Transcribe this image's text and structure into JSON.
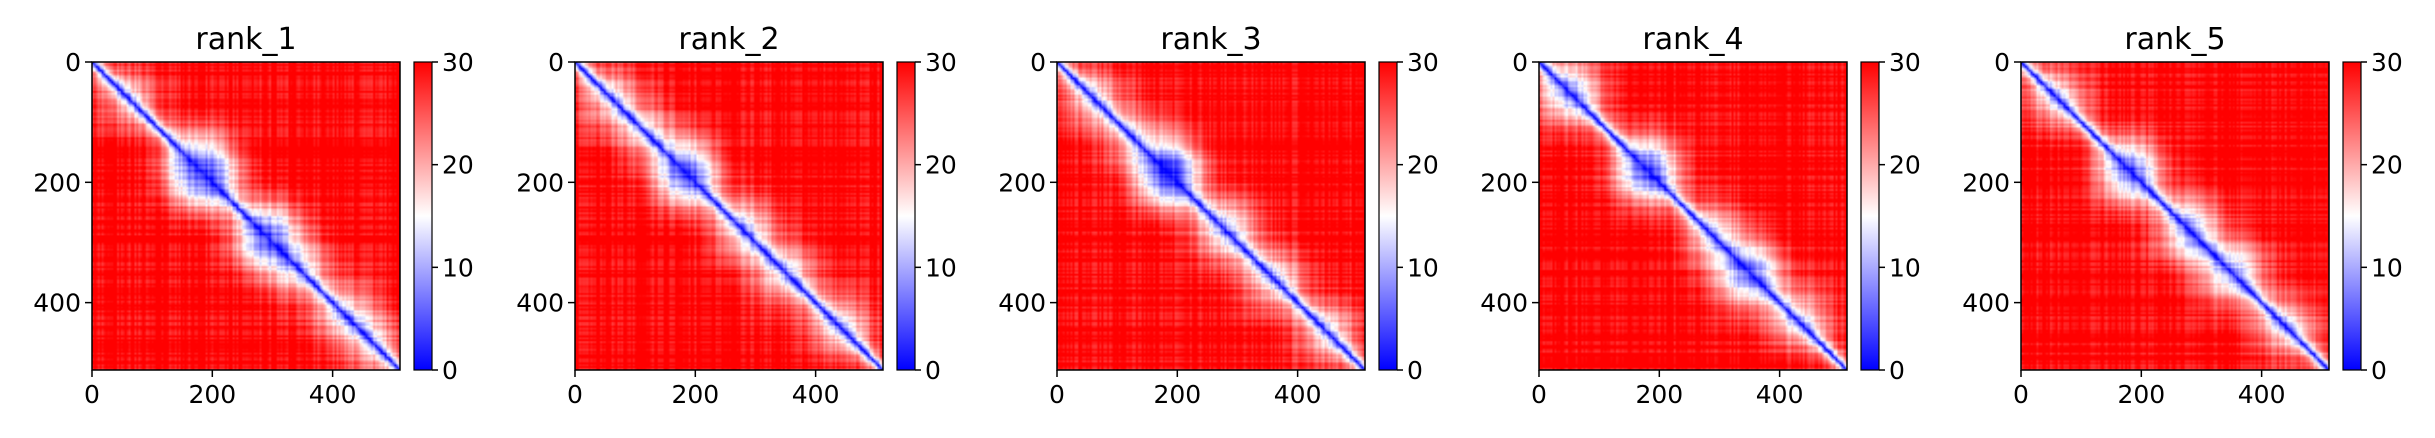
{
  "chart_data": [
    {
      "type": "heatmap",
      "title": "rank_1",
      "xlim": [
        0,
        512
      ],
      "ylim": [
        512,
        0
      ],
      "xticks": [
        0,
        200,
        400
      ],
      "yticks": [
        0,
        200,
        400
      ],
      "colorbar": {
        "range": [
          0,
          30
        ],
        "ticks": [
          0,
          10,
          20,
          30
        ],
        "colormap": "bwr",
        "low_color": "#0000ff",
        "mid_color": "#ffffff",
        "high_color": "#ff0000"
      },
      "blobs": [
        [
          60,
          0.3
        ],
        [
          170,
          0.5
        ],
        [
          190,
          0.7
        ],
        [
          290,
          0.75
        ],
        [
          340,
          0.4
        ],
        [
          420,
          0.4
        ],
        [
          470,
          0.3
        ]
      ]
    },
    {
      "type": "heatmap",
      "title": "rank_2",
      "xlim": [
        0,
        512
      ],
      "ylim": [
        512,
        0
      ],
      "xticks": [
        0,
        200,
        400
      ],
      "yticks": [
        0,
        200,
        400
      ],
      "colorbar": {
        "range": [
          0,
          30
        ],
        "ticks": [
          0,
          10,
          20,
          30
        ],
        "colormap": "bwr",
        "low_color": "#0000ff",
        "mid_color": "#ffffff",
        "high_color": "#ff0000"
      },
      "blobs": [
        [
          60,
          0.35
        ],
        [
          120,
          0.3
        ],
        [
          185,
          0.8
        ],
        [
          280,
          0.45
        ],
        [
          350,
          0.4
        ],
        [
          440,
          0.4
        ]
      ]
    },
    {
      "type": "heatmap",
      "title": "rank_3",
      "xlim": [
        0,
        512
      ],
      "ylim": [
        512,
        0
      ],
      "xticks": [
        0,
        200,
        400
      ],
      "yticks": [
        0,
        200,
        400
      ],
      "colorbar": {
        "range": [
          0,
          30
        ],
        "ticks": [
          0,
          10,
          20,
          30
        ],
        "colormap": "bwr",
        "low_color": "#0000ff",
        "mid_color": "#ffffff",
        "high_color": "#ff0000"
      },
      "blobs": [
        [
          60,
          0.35
        ],
        [
          130,
          0.3
        ],
        [
          185,
          0.9
        ],
        [
          280,
          0.5
        ],
        [
          360,
          0.4
        ],
        [
          450,
          0.4
        ]
      ]
    },
    {
      "type": "heatmap",
      "title": "rank_4",
      "xlim": [
        0,
        512
      ],
      "ylim": [
        512,
        0
      ],
      "xticks": [
        0,
        200,
        400
      ],
      "yticks": [
        0,
        200,
        400
      ],
      "colorbar": {
        "range": [
          0,
          30
        ],
        "ticks": [
          0,
          10,
          20,
          30
        ],
        "colormap": "bwr",
        "low_color": "#0000ff",
        "mid_color": "#ffffff",
        "high_color": "#ff0000"
      },
      "blobs": [
        [
          50,
          0.6
        ],
        [
          180,
          0.8
        ],
        [
          290,
          0.4
        ],
        [
          350,
          0.7
        ],
        [
          430,
          0.4
        ]
      ]
    },
    {
      "type": "heatmap",
      "title": "rank_5",
      "xlim": [
        0,
        512
      ],
      "ylim": [
        512,
        0
      ],
      "xticks": [
        0,
        200,
        400
      ],
      "yticks": [
        0,
        200,
        400
      ],
      "colorbar": {
        "range": [
          0,
          30
        ],
        "ticks": [
          0,
          10,
          20,
          30
        ],
        "colormap": "bwr",
        "low_color": "#0000ff",
        "mid_color": "#ffffff",
        "high_color": "#ff0000"
      },
      "blobs": [
        [
          60,
          0.4
        ],
        [
          180,
          0.7
        ],
        [
          280,
          0.55
        ],
        [
          350,
          0.55
        ],
        [
          440,
          0.4
        ]
      ]
    }
  ]
}
